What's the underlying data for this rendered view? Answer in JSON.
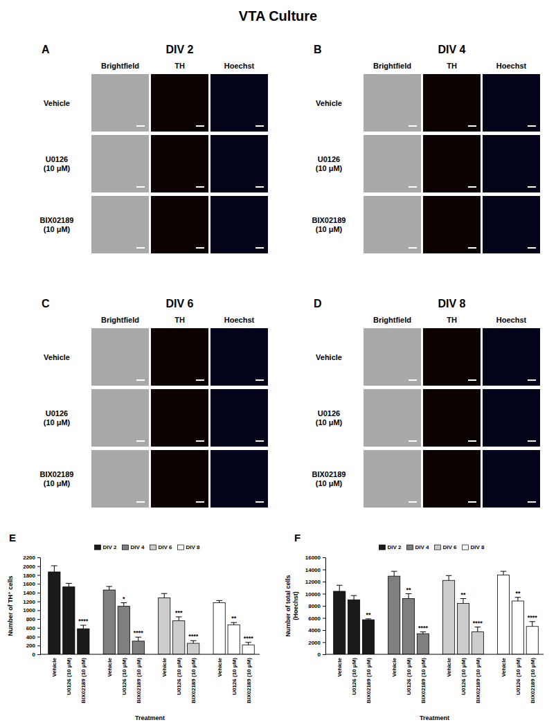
{
  "figure": {
    "title": "VTA Culture",
    "columns": [
      "Brightfield",
      "TH",
      "Hoechst"
    ],
    "rows": [
      [
        "Vehicle"
      ],
      [
        "U0126",
        "(10 μM)"
      ],
      [
        "BIX02189",
        "(10 μM)"
      ]
    ],
    "panels": [
      {
        "label": "A",
        "title": "DIV 2"
      },
      {
        "label": "B",
        "title": "DIV 4"
      },
      {
        "label": "C",
        "title": "DIV 6"
      },
      {
        "label": "D",
        "title": "DIV 8"
      }
    ]
  },
  "chart_data": [
    {
      "type": "bar",
      "panel_label": "E",
      "x_label": "Treatment",
      "y_label": [
        "Number of TH⁺ cells"
      ],
      "categories": [
        "Vehicle",
        "U0126 (10 μM)",
        "BIX02189 (10 μM)"
      ],
      "series": [
        {
          "name": "DIV 2",
          "color": "#1a1a1a",
          "values": [
            1870,
            1530,
            580
          ],
          "errors": [
            140,
            80,
            80
          ],
          "significance": [
            null,
            null,
            "****"
          ]
        },
        {
          "name": "DIV 4",
          "color": "#7f7f7f",
          "values": [
            1460,
            1090,
            300
          ],
          "errors": [
            80,
            80,
            90
          ],
          "significance": [
            null,
            "*",
            "****"
          ]
        },
        {
          "name": "DIV 6",
          "color": "#cccccc",
          "values": [
            1280,
            760,
            250
          ],
          "errors": [
            100,
            90,
            60
          ],
          "significance": [
            null,
            "***",
            "****"
          ]
        },
        {
          "name": "DIV 8",
          "color": "#ffffff",
          "values": [
            1170,
            670,
            210
          ],
          "errors": [
            50,
            50,
            60
          ],
          "significance": [
            null,
            "**",
            "****"
          ]
        }
      ],
      "ylim": [
        0,
        2200
      ],
      "yticks": [
        0,
        200,
        400,
        600,
        800,
        1000,
        1200,
        1400,
        1600,
        1800,
        2000,
        2200
      ],
      "legend": "top"
    },
    {
      "type": "bar",
      "panel_label": "F",
      "x_label": "Treatment",
      "y_label": [
        "Number of total cells",
        "(Hoechst)"
      ],
      "categories": [
        "Vehicle",
        "U0126 (10 μM)",
        "BIX02189 (10 μM)"
      ],
      "series": [
        {
          "name": "DIV 2",
          "color": "#1a1a1a",
          "values": [
            10400,
            9000,
            5700
          ],
          "errors": [
            1000,
            700,
            150
          ],
          "significance": [
            null,
            null,
            "**"
          ]
        },
        {
          "name": "DIV 4",
          "color": "#7f7f7f",
          "values": [
            12900,
            9200,
            3400
          ],
          "errors": [
            800,
            800,
            300
          ],
          "significance": [
            null,
            "**",
            "****"
          ]
        },
        {
          "name": "DIV 6",
          "color": "#cccccc",
          "values": [
            12200,
            8400,
            3700
          ],
          "errors": [
            800,
            800,
            800
          ],
          "significance": [
            null,
            "**",
            "****"
          ]
        },
        {
          "name": "DIV 8",
          "color": "#ffffff",
          "values": [
            13100,
            8800,
            4600
          ],
          "errors": [
            600,
            600,
            800
          ],
          "significance": [
            null,
            "**",
            "****"
          ]
        }
      ],
      "ylim": [
        0,
        16000
      ],
      "yticks": [
        0,
        2000,
        4000,
        6000,
        8000,
        10000,
        12000,
        14000,
        16000
      ],
      "legend": "top"
    }
  ]
}
